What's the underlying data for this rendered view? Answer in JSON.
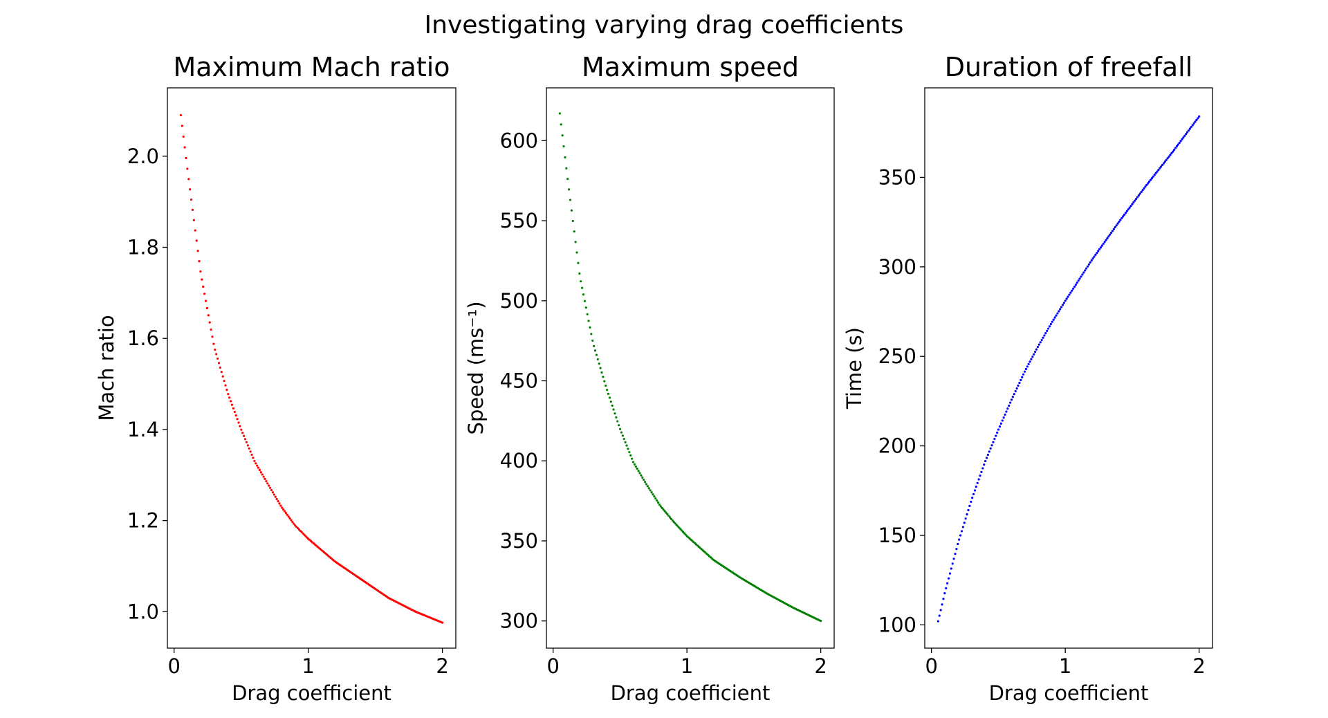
{
  "figure_title": "Investigating varying drag coefficients",
  "chart_data": [
    {
      "type": "scatter",
      "title": "Maximum Mach ratio",
      "xlabel": "Drag coefficient",
      "ylabel": "Mach ratio",
      "color": "#ff0000",
      "xlim": [
        -0.05,
        2.1
      ],
      "ylim": [
        0.92,
        2.15
      ],
      "xticks": [
        0,
        1,
        2
      ],
      "xtick_labels": [
        "0",
        "1",
        "2"
      ],
      "yticks": [
        1.0,
        1.2,
        1.4,
        1.6,
        1.8,
        2.0
      ],
      "ytick_labels": [
        "1.0",
        "1.2",
        "1.4",
        "1.6",
        "1.8",
        "2.0"
      ],
      "grid": false,
      "x": [
        0.05,
        0.1,
        0.2,
        0.3,
        0.4,
        0.5,
        0.6,
        0.7,
        0.8,
        0.9,
        1.0,
        1.2,
        1.4,
        1.6,
        1.8,
        2.0
      ],
      "y": [
        2.09,
        1.97,
        1.74,
        1.58,
        1.48,
        1.4,
        1.33,
        1.28,
        1.23,
        1.19,
        1.16,
        1.11,
        1.07,
        1.03,
        1.0,
        0.976
      ]
    },
    {
      "type": "scatter",
      "title": "Maximum speed",
      "xlabel": "Drag coefficient",
      "ylabel": "Speed (ms⁻¹)",
      "color": "#008000",
      "xlim": [
        -0.05,
        2.1
      ],
      "ylim": [
        283,
        633
      ],
      "xticks": [
        0,
        1,
        2
      ],
      "xtick_labels": [
        "0",
        "1",
        "2"
      ],
      "yticks": [
        300,
        350,
        400,
        450,
        500,
        550,
        600
      ],
      "ytick_labels": [
        "300",
        "350",
        "400",
        "450",
        "500",
        "550",
        "600"
      ],
      "grid": false,
      "x": [
        0.05,
        0.1,
        0.2,
        0.3,
        0.4,
        0.5,
        0.6,
        0.7,
        0.8,
        0.9,
        1.0,
        1.2,
        1.4,
        1.6,
        1.8,
        2.0
      ],
      "y": [
        617,
        582,
        515,
        473,
        445,
        420,
        399,
        385,
        372,
        362,
        353,
        338,
        327,
        317,
        308,
        300
      ]
    },
    {
      "type": "scatter",
      "title": "Duration of freefall",
      "xlabel": "Drag coefficient",
      "ylabel": "Time (s)",
      "color": "#0000ff",
      "xlim": [
        -0.05,
        2.1
      ],
      "ylim": [
        87,
        400
      ],
      "xticks": [
        0,
        1,
        2
      ],
      "xtick_labels": [
        "0",
        "1",
        "2"
      ],
      "yticks": [
        100,
        150,
        200,
        250,
        300,
        350
      ],
      "ytick_labels": [
        "100",
        "150",
        "200",
        "250",
        "300",
        "350"
      ],
      "grid": false,
      "x": [
        0.05,
        0.1,
        0.2,
        0.3,
        0.4,
        0.5,
        0.6,
        0.7,
        0.8,
        0.9,
        1.0,
        1.2,
        1.4,
        1.6,
        1.8,
        2.0
      ],
      "y": [
        102,
        118,
        146,
        170,
        191,
        209,
        226,
        242,
        256,
        269,
        281,
        304,
        325,
        345,
        364,
        384
      ]
    }
  ]
}
